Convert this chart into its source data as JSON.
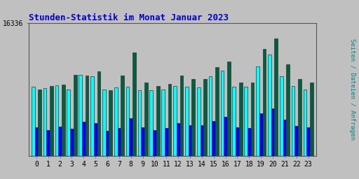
{
  "title": "Stunden-Statistik im Monat Januar 2023",
  "title_color": "#0000cc",
  "ylabel": "Seiten / Dateien / Anfragen",
  "ylabel_color": "#008888",
  "background_color": "#c0c0c0",
  "plot_bg_color": "#c0c0c0",
  "hours": [
    0,
    1,
    2,
    3,
    4,
    5,
    6,
    7,
    8,
    9,
    10,
    11,
    12,
    13,
    14,
    15,
    16,
    17,
    18,
    19,
    20,
    21,
    22,
    23
  ],
  "seiten": [
    8500,
    8300,
    8700,
    8200,
    10000,
    9800,
    8200,
    8400,
    8500,
    8100,
    8100,
    8200,
    8600,
    8500,
    8400,
    9800,
    10500,
    8500,
    8500,
    11000,
    12500,
    9800,
    8600,
    8200
  ],
  "dateien": [
    3500,
    3200,
    3600,
    3300,
    4200,
    4000,
    3100,
    3400,
    4600,
    3500,
    3200,
    3400,
    4000,
    3800,
    3800,
    4300,
    4800,
    3500,
    3400,
    5200,
    5800,
    4500,
    3700,
    3500
  ],
  "anfragen": [
    8200,
    8600,
    8800,
    10000,
    9900,
    10400,
    8100,
    9900,
    12700,
    9000,
    8600,
    8900,
    9900,
    9500,
    9500,
    10900,
    11600,
    9000,
    9000,
    13200,
    14500,
    11300,
    9500,
    9000
  ],
  "seiten_color": "#00ffff",
  "dateien_color": "#0000ff",
  "anfragen_color": "#006040",
  "bar_width": 0.28,
  "ylim": [
    0,
    16336
  ],
  "ytick_value": 16336,
  "font_family": "monospace",
  "grid_color": "#aaaaaa",
  "title_fontsize": 9,
  "tick_fontsize": 7
}
